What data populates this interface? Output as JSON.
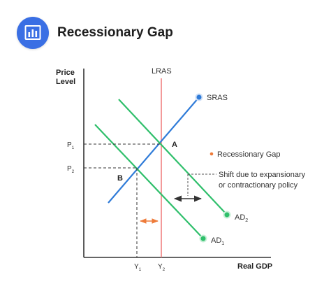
{
  "header": {
    "icon": "bar-chart-icon",
    "title": "Recessionary Gap"
  },
  "diagram": {
    "y_axis_label_line1": "Price",
    "y_axis_label_line2": "Level",
    "x_axis_label": "Real GDP",
    "curves": {
      "lras": "LRAS",
      "sras": "SRAS",
      "ad1": "AD",
      "ad1_sub": "1",
      "ad2": "AD",
      "ad2_sub": "2"
    },
    "points": {
      "a": "A",
      "b": "B"
    },
    "price_ticks": {
      "p1": "P",
      "p1_sub": "1",
      "p2": "P",
      "p2_sub": "2"
    },
    "output_ticks": {
      "y1": "Y",
      "y1_sub": "1",
      "y2": "Y",
      "y2_sub": "2"
    },
    "annotations": {
      "gap_legend": "Recessionary Gap",
      "shift_line1": "Shift due to expansionary",
      "shift_line2": "or contractionary policy"
    },
    "colors": {
      "lras": "#f08080",
      "sras": "#2f7bd8",
      "ad": "#2fbf6b",
      "gap_arrow": "#ee7b3a",
      "accent": "#3a6fe4"
    }
  }
}
